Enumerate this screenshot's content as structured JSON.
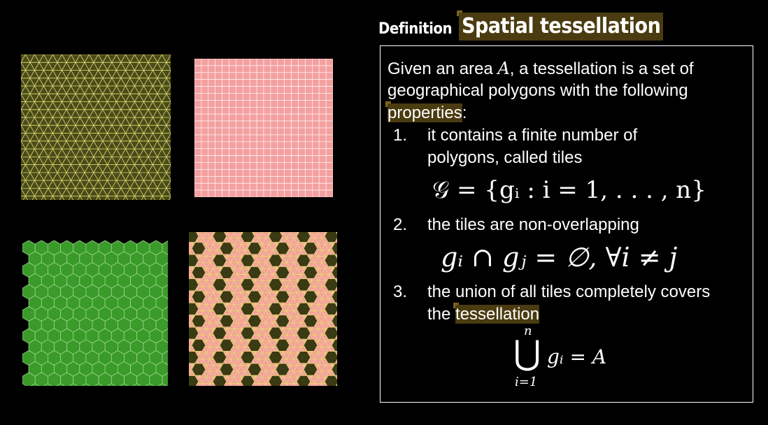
{
  "heading": {
    "label": "Definition",
    "title": "Spatial tessellation"
  },
  "definition": {
    "intro_1_pre": "Given an area ",
    "intro_var": "A",
    "intro_1_post": ", a tessellation is a set of",
    "intro_2": "geographical polygons with the following",
    "intro_3_hl": "properties",
    "intro_3_post": ":",
    "items": [
      {
        "num": "1.",
        "line1": "it contains a finite number of",
        "line2": "polygons, called tiles"
      },
      {
        "num": "2.",
        "line1": "the tiles are non-overlapping"
      },
      {
        "num": "3.",
        "line1": "the union of all tiles completely covers",
        "line2_pre": "the ",
        "line2_hl": "tessellation"
      }
    ],
    "math": {
      "set_formula": "𝒢 = {gᵢ : i = 1, . . . , n}",
      "nonoverlap_formula": "gᵢ ∩ gⱼ = ∅, ∀i ≠ j",
      "union_top": "n",
      "union_symbol": "⋃",
      "union_bottom": "i=1",
      "union_rhs": "gᵢ = A"
    }
  },
  "colors": {
    "triangular_fill": "#4a4a1a",
    "triangular_stroke": "#d6d36a",
    "square_fill": "#f4a0a0",
    "square_stroke": "#ffffff",
    "hex_fill": "#3a9a2a",
    "hex_stroke": "#9ed98e",
    "mixed_tri_fill": "#f4a0a0",
    "mixed_hex_fill": "#3a3a14",
    "highlight": "#4a3b10"
  },
  "tessellations": [
    {
      "name": "triangular-grid"
    },
    {
      "name": "square-grid"
    },
    {
      "name": "hexagonal-grid"
    },
    {
      "name": "trihexagonal-grid"
    }
  ]
}
